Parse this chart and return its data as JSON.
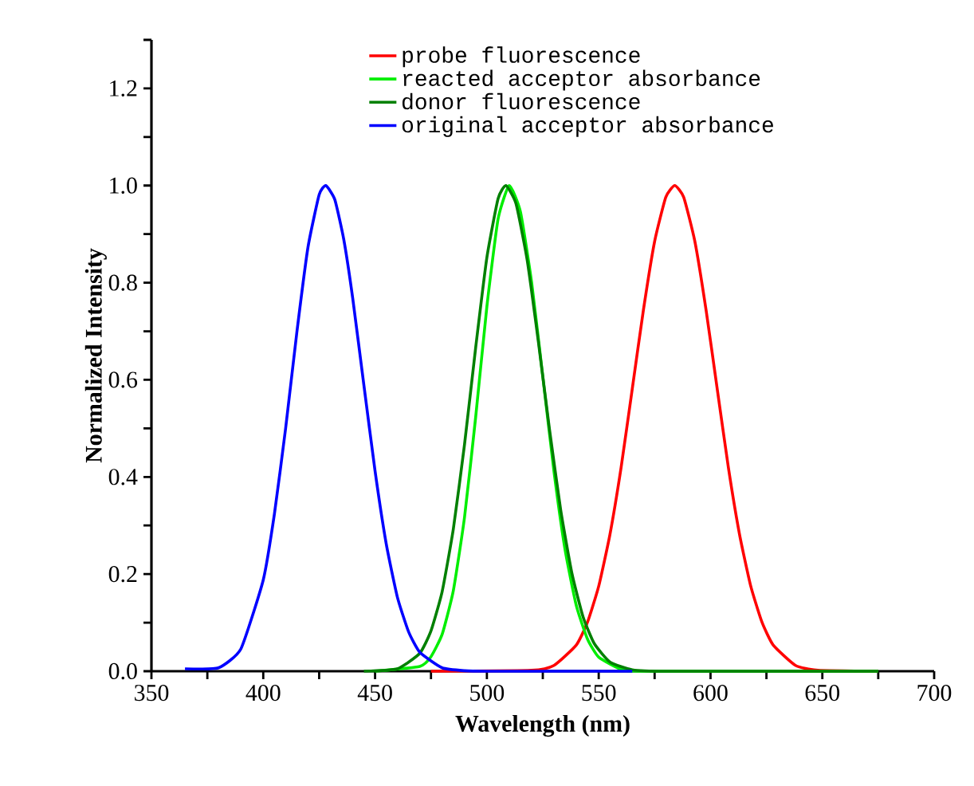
{
  "chart_data": {
    "type": "line",
    "xlabel": "Wavelength (nm)",
    "ylabel": "Normalized Intensity",
    "xlim": [
      350,
      700
    ],
    "ylim": [
      0,
      1.3
    ],
    "xticks": [
      350,
      {
        "value": 375,
        "label": null
      },
      400,
      {
        "value": 425,
        "label": null
      },
      450,
      {
        "value": 475,
        "label": null
      },
      500,
      {
        "value": 525,
        "label": null
      },
      550,
      {
        "value": 575,
        "label": null
      },
      600,
      {
        "value": 625,
        "label": null
      },
      650,
      {
        "value": 675,
        "label": null
      },
      700
    ],
    "yticks": [
      {
        "value": 0,
        "label": "0.0"
      },
      {
        "value": 0.1,
        "label": null
      },
      {
        "value": 0.2,
        "label": "0.2"
      },
      {
        "value": 0.3,
        "label": null
      },
      {
        "value": 0.4,
        "label": "0.4"
      },
      {
        "value": 0.5,
        "label": null
      },
      {
        "value": 0.6,
        "label": "0.6"
      },
      {
        "value": 0.7,
        "label": null
      },
      {
        "value": 0.8,
        "label": "0.8"
      },
      {
        "value": 0.9,
        "label": null
      },
      {
        "value": 1.0,
        "label": "1.0"
      },
      {
        "value": 1.1,
        "label": null
      },
      {
        "value": 1.2,
        "label": "1.2"
      },
      {
        "value": 1.3,
        "label": null
      }
    ],
    "grid": false,
    "legend": "top",
    "marker": "none",
    "line_style": "solid",
    "series": [
      {
        "name": "probe fluorescence",
        "color": "#ff0000",
        "x": [
          475,
          520,
          530,
          540,
          545,
          550,
          555,
          560,
          565,
          570,
          575,
          580,
          584,
          588,
          593,
          598,
          603,
          608,
          613,
          618,
          623,
          628,
          638,
          648,
          675
        ],
        "values": [
          0,
          0.002,
          0.012,
          0.054,
          0.101,
          0.175,
          0.281,
          0.419,
          0.581,
          0.744,
          0.885,
          0.976,
          1.0,
          0.976,
          0.885,
          0.744,
          0.581,
          0.419,
          0.281,
          0.175,
          0.101,
          0.054,
          0.012,
          0.002,
          0
        ]
      },
      {
        "name": "reacted acceptor absorbance",
        "color": "#00ee00",
        "x": [
          450,
          470,
          475,
          480,
          485,
          490,
          495,
          500,
          505,
          510,
          515,
          520,
          525,
          530,
          535,
          540,
          545,
          550,
          560,
          570,
          675
        ],
        "values": [
          0,
          0.01,
          0.03,
          0.076,
          0.166,
          0.317,
          0.524,
          0.751,
          0.931,
          1.0,
          0.946,
          0.801,
          0.607,
          0.411,
          0.249,
          0.135,
          0.066,
          0.029,
          0.004,
          0,
          0
        ]
      },
      {
        "name": "donor fluorescence",
        "color": "#008000",
        "x": [
          445,
          460,
          470,
          475,
          480,
          485,
          490,
          495,
          500,
          505,
          508.5,
          513,
          518,
          523,
          528,
          533,
          538,
          543,
          548,
          555,
          565,
          580,
          675
        ],
        "values": [
          0,
          0.005,
          0.037,
          0.083,
          0.164,
          0.293,
          0.467,
          0.667,
          0.852,
          0.973,
          1.0,
          0.963,
          0.847,
          0.679,
          0.498,
          0.332,
          0.202,
          0.112,
          0.057,
          0.019,
          0.003,
          0,
          0
        ]
      },
      {
        "name": "original acceptor absorbance",
        "color": "#0000ff",
        "x": [
          365,
          380,
          390,
          400,
          405,
          410,
          415,
          420,
          425,
          428,
          432,
          436,
          440,
          445,
          450,
          455,
          460,
          465,
          470,
          480,
          490,
          500,
          565
        ],
        "values": [
          0.005,
          0.007,
          0.046,
          0.188,
          0.324,
          0.5,
          0.697,
          0.873,
          0.981,
          1.0,
          0.971,
          0.889,
          0.768,
          0.589,
          0.412,
          0.262,
          0.152,
          0.081,
          0.039,
          0.007,
          0.001,
          0,
          0
        ]
      }
    ]
  }
}
